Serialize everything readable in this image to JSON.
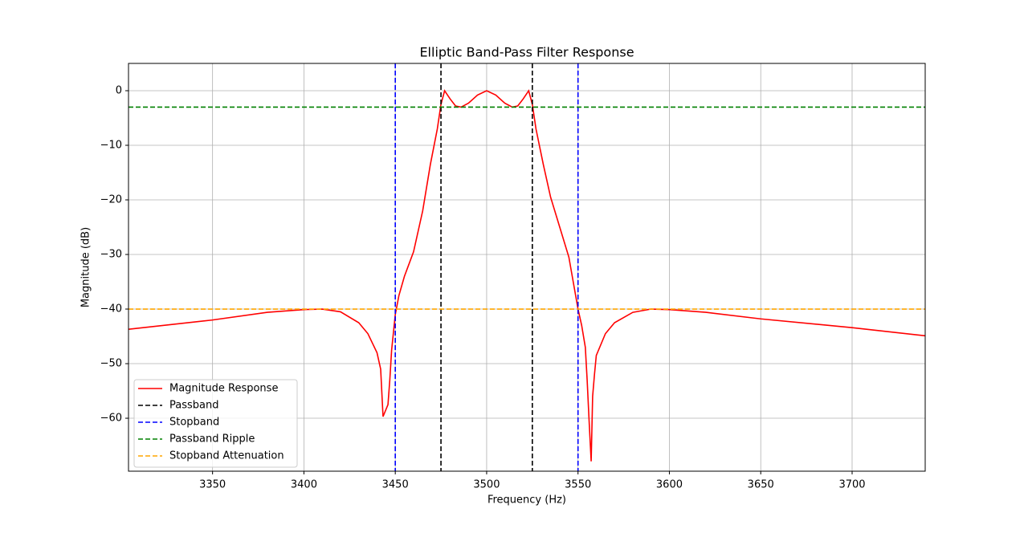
{
  "chart_data": {
    "type": "line",
    "title": "Elliptic Band-Pass Filter Response",
    "xlabel": "Frequency (Hz)",
    "ylabel": "Magnitude (dB)",
    "xlim": [
      3304,
      3740
    ],
    "ylim": [
      -69.7,
      5
    ],
    "xticks": [
      3350,
      3400,
      3450,
      3500,
      3550,
      3600,
      3650,
      3700
    ],
    "yticks": [
      0,
      {
        "value": -10,
        "label": "−10"
      },
      {
        "value": -20,
        "label": "−20"
      },
      {
        "value": -30,
        "label": "−30"
      },
      {
        "value": -40,
        "label": "−40"
      },
      {
        "value": -50,
        "label": "−50"
      },
      {
        "value": -60,
        "label": "−60"
      }
    ],
    "grid": true,
    "legend": "lower left",
    "series": [
      {
        "name": "Magnitude Response",
        "color": "#ff0000",
        "style": "solid",
        "x": [
          3304,
          3350,
          3380,
          3400,
          3410,
          3420,
          3430,
          3435,
          3440,
          3442,
          3443.3,
          3446,
          3447,
          3448,
          3450,
          3452,
          3455,
          3460,
          3465,
          3469.2,
          3473,
          3475,
          3477,
          3480,
          3483,
          3486,
          3490,
          3495,
          3500,
          3505,
          3510,
          3514,
          3517,
          3520,
          3523,
          3525,
          3527,
          3531,
          3535,
          3540,
          3545,
          3550,
          3552,
          3554,
          3555,
          3556,
          3557.2,
          3558,
          3559,
          3560,
          3565,
          3570,
          3580,
          3590,
          3600,
          3620,
          3650,
          3700,
          3740
        ],
        "values": [
          -43.7,
          -42.0,
          -40.6,
          -40.1,
          -40.0,
          -40.5,
          -42.5,
          -44.5,
          -48,
          -51,
          -59.7,
          -57.5,
          -53,
          -47.5,
          -41,
          -37.5,
          -34,
          -29.5,
          -22,
          -13.5,
          -7,
          -2.5,
          0,
          -1.5,
          -2.8,
          -3,
          -2.3,
          -0.8,
          0,
          -0.8,
          -2.3,
          -3,
          -2.8,
          -1.5,
          0,
          -2.5,
          -7,
          -13.5,
          -19.5,
          -25,
          -30.5,
          -40,
          -43,
          -47,
          -53,
          -60,
          -67.9,
          -56,
          -52,
          -48.5,
          -44.5,
          -42.5,
          -40.6,
          -40.0,
          -40.1,
          -40.6,
          -41.8,
          -43.4,
          -44.9
        ]
      },
      {
        "name": "Passband",
        "color": "#000000",
        "style": "dashed",
        "x": [
          3475,
          3525
        ]
      },
      {
        "name": "Stopband",
        "color": "#0000ff",
        "style": "dashed",
        "x": [
          3450,
          3550
        ]
      },
      {
        "name": "Passband Ripple",
        "color": "#008000",
        "style": "dashed",
        "values": [
          -3
        ]
      },
      {
        "name": "Stopband Attenuation",
        "color": "#ffa500",
        "style": "dashed",
        "values": [
          -40
        ]
      }
    ]
  }
}
